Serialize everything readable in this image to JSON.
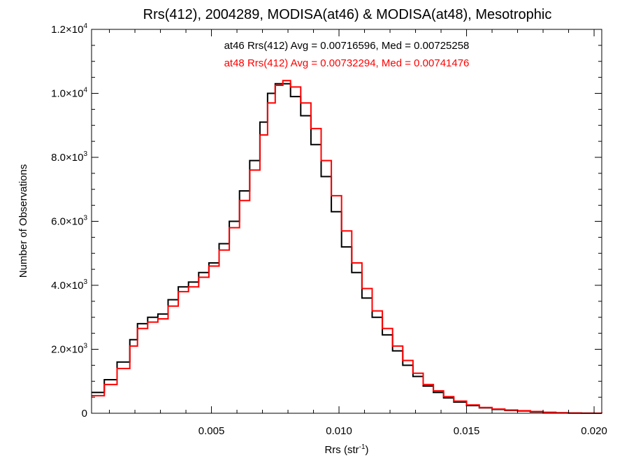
{
  "chart_data": {
    "type": "line",
    "title": "Rrs(412), 2004289, MODISA(at46) & MODISA(at48), Mesotrophic",
    "xlabel": "Rrs (str",
    "xlabel_sup": "-1",
    "xlabel_tail": ")",
    "ylabel": "Number of Observations",
    "xlim": [
      0.0003,
      0.0203
    ],
    "ylim": [
      0,
      12000
    ],
    "x_ticks": [
      {
        "value": 0.005,
        "label": "0.005"
      },
      {
        "value": 0.01,
        "label": "0.010"
      },
      {
        "value": 0.015,
        "label": "0.015"
      },
      {
        "value": 0.02,
        "label": "0.020"
      }
    ],
    "y_ticks": [
      {
        "value": 0,
        "mant": "0",
        "exp": ""
      },
      {
        "value": 2000,
        "mant": "2.0",
        "exp": "3"
      },
      {
        "value": 4000,
        "mant": "4.0",
        "exp": "3"
      },
      {
        "value": 6000,
        "mant": "6.0",
        "exp": "3"
      },
      {
        "value": 8000,
        "mant": "8.0",
        "exp": "3"
      },
      {
        "value": 10000,
        "mant": "1.0",
        "exp": "4"
      },
      {
        "value": 12000,
        "mant": "1.2",
        "exp": "4"
      }
    ],
    "grid": false,
    "annotations": [
      {
        "text": "at46 Rrs(412) Avg = 0.00716596, Med = 0.00725258",
        "color": "#000000"
      },
      {
        "text": "at48 Rrs(412) Avg = 0.00732294, Med = 0.00741476",
        "color": "#ff0000"
      }
    ],
    "series": [
      {
        "color": "#000000",
        "x": [
          0.0003,
          0.0008,
          0.0013,
          0.0018,
          0.0021,
          0.0025,
          0.0029,
          0.0033,
          0.0037,
          0.0041,
          0.0045,
          0.0049,
          0.0053,
          0.0057,
          0.0061,
          0.0065,
          0.0069,
          0.0072,
          0.0075,
          0.0078,
          0.0081,
          0.0085,
          0.0089,
          0.0093,
          0.0097,
          0.0101,
          0.0105,
          0.0109,
          0.0113,
          0.0117,
          0.0121,
          0.0125,
          0.0129,
          0.0133,
          0.0137,
          0.0141,
          0.0145,
          0.015,
          0.0155,
          0.016,
          0.0165,
          0.017,
          0.0175,
          0.018,
          0.0185,
          0.019,
          0.0195,
          0.02,
          0.0203
        ],
        "y": [
          650,
          1050,
          1600,
          2300,
          2800,
          3000,
          3100,
          3550,
          3950,
          4100,
          4400,
          4700,
          5300,
          6000,
          6950,
          7900,
          9100,
          10000,
          10300,
          10300,
          9900,
          9300,
          8400,
          7400,
          6300,
          5200,
          4400,
          3600,
          3000,
          2450,
          1950,
          1500,
          1150,
          850,
          650,
          480,
          350,
          240,
          170,
          120,
          90,
          70,
          45,
          25,
          12,
          6,
          3,
          1,
          0
        ]
      },
      {
        "color": "#ff0000",
        "x": [
          0.0003,
          0.0008,
          0.0013,
          0.0018,
          0.0021,
          0.0025,
          0.0029,
          0.0033,
          0.0037,
          0.0041,
          0.0045,
          0.0049,
          0.0053,
          0.0057,
          0.0061,
          0.0065,
          0.0069,
          0.0072,
          0.0075,
          0.0078,
          0.0081,
          0.0085,
          0.0089,
          0.0093,
          0.0097,
          0.0101,
          0.0105,
          0.0109,
          0.0113,
          0.0117,
          0.0121,
          0.0125,
          0.0129,
          0.0133,
          0.0137,
          0.0141,
          0.0145,
          0.015,
          0.0155,
          0.016,
          0.0165,
          0.017,
          0.0175,
          0.018,
          0.0185,
          0.019,
          0.0195,
          0.02,
          0.0203
        ],
        "y": [
          550,
          900,
          1400,
          2100,
          2650,
          2850,
          2950,
          3350,
          3800,
          3950,
          4250,
          4600,
          5100,
          5800,
          6650,
          7600,
          8700,
          9700,
          10250,
          10400,
          10200,
          9700,
          8900,
          7900,
          6800,
          5700,
          4700,
          3900,
          3200,
          2650,
          2100,
          1650,
          1250,
          900,
          700,
          520,
          380,
          260,
          180,
          130,
          100,
          80,
          55,
          30,
          15,
          8,
          4,
          2,
          0
        ]
      }
    ]
  }
}
